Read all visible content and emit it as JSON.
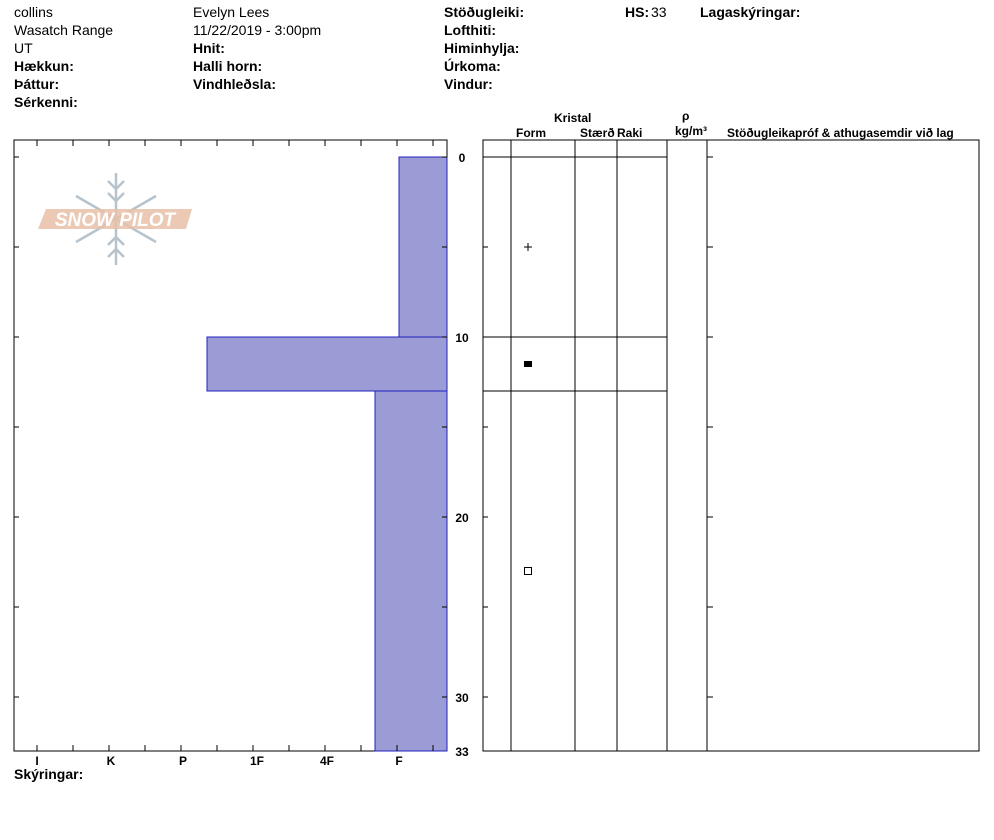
{
  "header": {
    "location": "collins",
    "range": "Wasatch Range",
    "state": "UT",
    "elevation_label": "Hækkun:",
    "aspect_label": "Þáttur:",
    "features_label": "Sérkenni:",
    "observer": "Evelyn Lees",
    "datetime": "11/22/2019 - 3:00pm",
    "coords_label": "Hnit:",
    "slope_label": "Halli horn:",
    "wind_loading_label": "Vindhleðsla:",
    "stability_label": "Stöðugleiki:",
    "air_temp_label": "Lofthiti:",
    "sky_label": "Himinhylja:",
    "precip_label": "Úrkoma:",
    "wind_label": "Vindur:",
    "hs_label": "HS:",
    "hs_value": "33",
    "layer_notes_label": "Lagaskýringar:"
  },
  "columns": {
    "crystal": "Kristal",
    "form": "Form",
    "size": "Stærð",
    "moisture": "Raki",
    "rho": "ρ",
    "density_unit": "kg/m³",
    "stability_notes": "Stöðugleikapróf & athugasemdir við lag"
  },
  "footer": {
    "legend_label": "Skýringar:"
  },
  "logo": {
    "text": "SNOW PILOT"
  },
  "colors": {
    "layer_fill": "#9b9bd6",
    "layer_stroke": "#2020c0",
    "logo": "#e8bfa8"
  },
  "chart_data": {
    "type": "bar",
    "orientation": "horizontal",
    "y_range": [
      0,
      33
    ],
    "y_ticks": [
      0,
      10,
      20,
      30,
      33
    ],
    "hardness_scale": [
      "I",
      "K",
      "P",
      "1F",
      "4F",
      "F"
    ],
    "layers": [
      {
        "top": 0,
        "bottom": 10,
        "hardness": "F",
        "hardness_value": 0.7,
        "form_symbol": "plus"
      },
      {
        "top": 10,
        "bottom": 13,
        "hardness": "P",
        "hardness_value": 3.5,
        "form_symbol": "filled-square"
      },
      {
        "top": 13,
        "bottom": 33,
        "hardness": "F",
        "hardness_value": 1.0,
        "form_symbol": "hollow-square"
      }
    ]
  }
}
